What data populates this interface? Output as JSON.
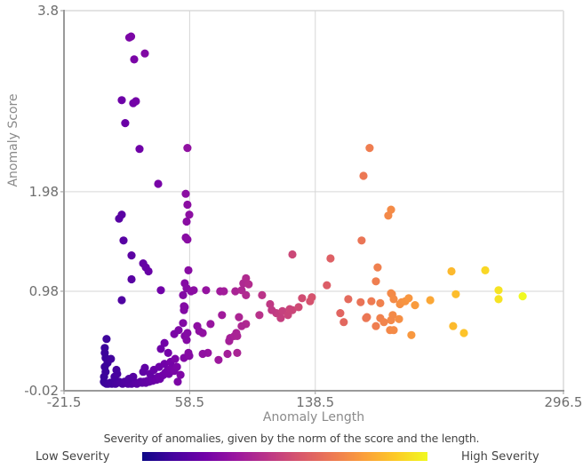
{
  "chart_data": {
    "type": "scatter",
    "title": "",
    "xlabel": "Anomaly Length",
    "ylabel": "Anomaly Score",
    "xlim": [
      -21.5,
      296.5
    ],
    "ylim": [
      -0.02,
      3.8
    ],
    "xticks": [
      -21.5,
      58.5,
      138.5,
      296.5
    ],
    "xtick_labels": [
      "-21.5",
      "58.5",
      "138.5",
      "296.5"
    ],
    "yticks": [
      -0.02,
      0.98,
      1.98,
      3.8
    ],
    "ytick_labels": [
      "-0.02",
      "0.98",
      "1.98",
      "3.8"
    ],
    "grid": true,
    "colorscale": "plasma",
    "colorscale_stops": [
      "#0d0887",
      "#46039f",
      "#7201a8",
      "#9c179e",
      "#bd3786",
      "#d8576b",
      "#ed7953",
      "#fb9f3a",
      "#fdca26",
      "#f0f921"
    ],
    "legend": {
      "caption": "Severity of anomalies, given by the norm of the score and the length.",
      "low_label": "Low Severity",
      "high_label": "High Severity",
      "placement": "bottom"
    },
    "points": [
      [
        20.1,
        3.53
      ],
      [
        21.2,
        3.54
      ],
      [
        30.0,
        3.37
      ],
      [
        23.2,
        3.31
      ],
      [
        15.3,
        2.9
      ],
      [
        22.6,
        2.87
      ],
      [
        24.3,
        2.89
      ],
      [
        17.5,
        2.67
      ],
      [
        26.6,
        2.41
      ],
      [
        38.5,
        2.06
      ],
      [
        57.1,
        2.42
      ],
      [
        13.6,
        1.71
      ],
      [
        15.3,
        1.75
      ],
      [
        16.4,
        1.49
      ],
      [
        21.5,
        1.34
      ],
      [
        28.9,
        1.26
      ],
      [
        30.6,
        1.22
      ],
      [
        32.3,
        1.18
      ],
      [
        21.5,
        1.1
      ],
      [
        40.2,
        0.99
      ],
      [
        15.3,
        0.89
      ],
      [
        56.0,
        1.96
      ],
      [
        57.1,
        1.85
      ],
      [
        58.3,
        1.75
      ],
      [
        56.6,
        1.68
      ],
      [
        56.0,
        1.52
      ],
      [
        57.1,
        1.5
      ],
      [
        57.7,
        1.19
      ],
      [
        55.4,
        1.06
      ],
      [
        56.6,
        1.01
      ],
      [
        59.4,
        0.98
      ],
      [
        54.3,
        0.94
      ],
      [
        61.1,
        0.99
      ],
      [
        69.0,
        0.99
      ],
      [
        54.9,
        0.83
      ],
      [
        55.4,
        0.82
      ],
      [
        54.9,
        0.79
      ],
      [
        54.3,
        0.66
      ],
      [
        51.5,
        0.59
      ],
      [
        55.4,
        0.53
      ],
      [
        56.6,
        0.49
      ],
      [
        57.7,
        0.36
      ],
      [
        54.9,
        0.31
      ],
      [
        58.3,
        0.33
      ],
      [
        48.7,
        0.55
      ],
      [
        42.5,
        0.46
      ],
      [
        44.8,
        0.36
      ],
      [
        40.2,
        0.4
      ],
      [
        78.0,
        0.98
      ],
      [
        80.3,
        0.98
      ],
      [
        87.6,
        0.98
      ],
      [
        92.7,
        1.06
      ],
      [
        94.4,
        1.11
      ],
      [
        96.1,
        1.05
      ],
      [
        91.6,
        0.99
      ],
      [
        94.4,
        0.94
      ],
      [
        104.6,
        0.94
      ],
      [
        109.7,
        0.85
      ],
      [
        113.7,
        0.76
      ],
      [
        117.6,
        0.78
      ],
      [
        123.9,
        0.79
      ],
      [
        127.9,
        0.82
      ],
      [
        135.2,
        0.88
      ],
      [
        130.1,
        0.91
      ],
      [
        136.3,
        0.92
      ],
      [
        71.8,
        0.65
      ],
      [
        79.1,
        0.74
      ],
      [
        89.9,
        0.72
      ],
      [
        94.4,
        0.65
      ],
      [
        102.9,
        0.74
      ],
      [
        110.8,
        0.79
      ],
      [
        116.5,
        0.71
      ],
      [
        121.1,
        0.74
      ],
      [
        122.2,
        0.8
      ],
      [
        63.4,
        0.63
      ],
      [
        66.8,
        0.56
      ],
      [
        84.3,
        0.51
      ],
      [
        83.7,
        0.48
      ],
      [
        91.6,
        0.63
      ],
      [
        88.2,
        0.56
      ],
      [
        87.1,
        0.53
      ],
      [
        88.8,
        0.53
      ],
      [
        88.8,
        0.36
      ],
      [
        82.6,
        0.35
      ],
      [
        64.6,
        0.58
      ],
      [
        57.1,
        0.56
      ],
      [
        70.1,
        0.36
      ],
      [
        76.9,
        0.29
      ],
      [
        66.8,
        0.35
      ],
      [
        123.9,
        1.35
      ],
      [
        148.2,
        1.31
      ],
      [
        173.1,
        2.42
      ],
      [
        169.2,
        2.14
      ],
      [
        186.7,
        1.8
      ],
      [
        185.0,
        1.74
      ],
      [
        168.0,
        1.49
      ],
      [
        178.2,
        1.22
      ],
      [
        177.1,
        1.08
      ],
      [
        145.9,
        1.04
      ],
      [
        159.5,
        0.9
      ],
      [
        167.4,
        0.87
      ],
      [
        174.2,
        0.88
      ],
      [
        179.9,
        0.86
      ],
      [
        187.3,
        0.95
      ],
      [
        186.7,
        0.96
      ],
      [
        188.4,
        0.9
      ],
      [
        192.4,
        0.85
      ],
      [
        193.5,
        0.87
      ],
      [
        195.8,
        0.88
      ],
      [
        198.0,
        0.91
      ],
      [
        202.0,
        0.84
      ],
      [
        211.7,
        0.89
      ],
      [
        154.4,
        0.76
      ],
      [
        156.6,
        0.67
      ],
      [
        171.4,
        0.72
      ],
      [
        170.8,
        0.71
      ],
      [
        177.1,
        0.63
      ],
      [
        179.9,
        0.71
      ],
      [
        187.8,
        0.74
      ],
      [
        186.7,
        0.69
      ],
      [
        191.8,
        0.7
      ],
      [
        182.2,
        0.67
      ],
      [
        186.1,
        0.59
      ],
      [
        199.7,
        0.54
      ],
      [
        188.4,
        0.59
      ],
      [
        225.2,
        1.18
      ],
      [
        246.7,
        1.19
      ],
      [
        228.0,
        0.95
      ],
      [
        255.2,
        0.99
      ],
      [
        255.2,
        0.9
      ],
      [
        270.5,
        0.93
      ],
      [
        226.3,
        0.63
      ],
      [
        233.1,
        0.56
      ],
      [
        5.6,
        0.5
      ],
      [
        4.5,
        0.41
      ],
      [
        4.5,
        0.36
      ],
      [
        5.0,
        0.31
      ],
      [
        6.2,
        0.26
      ],
      [
        8.4,
        0.3
      ],
      [
        3.9,
        0.07
      ],
      [
        4.5,
        0.06
      ],
      [
        5.6,
        0.05
      ],
      [
        6.7,
        0.05
      ],
      [
        7.9,
        0.06
      ],
      [
        9.0,
        0.05
      ],
      [
        10.1,
        0.06
      ],
      [
        11.3,
        0.05
      ],
      [
        12.4,
        0.06
      ],
      [
        13.6,
        0.07
      ],
      [
        14.7,
        0.06
      ],
      [
        15.8,
        0.05
      ],
      [
        17.0,
        0.07
      ],
      [
        18.1,
        0.06
      ],
      [
        19.3,
        0.05
      ],
      [
        20.4,
        0.06
      ],
      [
        21.5,
        0.05
      ],
      [
        22.6,
        0.07
      ],
      [
        23.8,
        0.06
      ],
      [
        24.9,
        0.05
      ],
      [
        26.0,
        0.06
      ],
      [
        27.2,
        0.07
      ],
      [
        28.3,
        0.06
      ],
      [
        29.4,
        0.07
      ],
      [
        30.6,
        0.06
      ],
      [
        31.7,
        0.08
      ],
      [
        32.8,
        0.07
      ],
      [
        34.0,
        0.1
      ],
      [
        35.1,
        0.08
      ],
      [
        36.2,
        0.1
      ],
      [
        37.4,
        0.09
      ],
      [
        38.5,
        0.12
      ],
      [
        39.6,
        0.1
      ],
      [
        40.8,
        0.13
      ],
      [
        41.9,
        0.14
      ],
      [
        43.0,
        0.16
      ],
      [
        44.2,
        0.18
      ],
      [
        45.3,
        0.15
      ],
      [
        46.4,
        0.2
      ],
      [
        47.6,
        0.22
      ],
      [
        48.7,
        0.18
      ],
      [
        4.0,
        0.12
      ],
      [
        5.0,
        0.17
      ],
      [
        4.5,
        0.22
      ],
      [
        10.7,
        0.12
      ],
      [
        12.4,
        0.15
      ],
      [
        11.9,
        0.19
      ],
      [
        19.8,
        0.1
      ],
      [
        22.6,
        0.12
      ],
      [
        28.9,
        0.17
      ],
      [
        30.0,
        0.21
      ],
      [
        33.4,
        0.15
      ],
      [
        35.7,
        0.19
      ],
      [
        39.1,
        0.22
      ],
      [
        42.5,
        0.25
      ],
      [
        46.4,
        0.27
      ],
      [
        49.3,
        0.3
      ],
      [
        50.4,
        0.22
      ],
      [
        52.7,
        0.14
      ],
      [
        50.9,
        0.07
      ]
    ]
  }
}
